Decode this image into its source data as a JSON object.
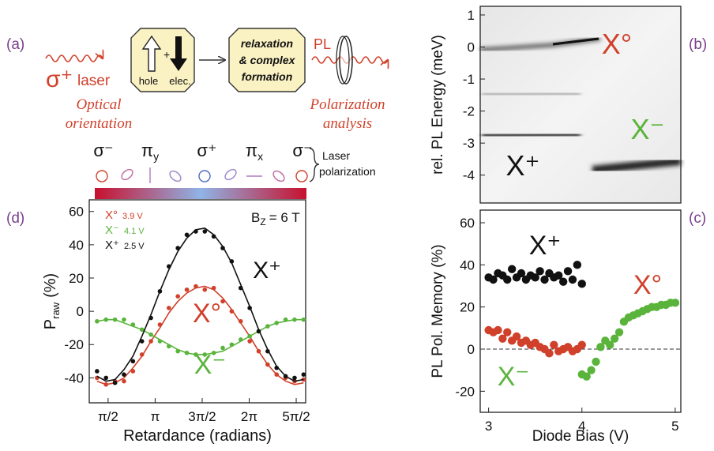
{
  "panel_labels": [
    "(a)",
    "(b)",
    "(c)",
    "(d)"
  ],
  "diagram": {
    "laser": {
      "symbol": "σ⁺",
      "text": "laser"
    },
    "optical": [
      "Optical",
      "orientation"
    ],
    "box1": {
      "plus": "+",
      "hole": "hole",
      "elec": "elec."
    },
    "box2": [
      "relaxation",
      "& complex",
      "formation"
    ],
    "pl": "PL",
    "polarization": [
      "Polarization",
      "analysis"
    ],
    "polarization_states": [
      {
        "symbol": "σ⁻"
      },
      {
        "symbol": "π",
        "sub": "y"
      },
      {
        "symbol": "σ⁺"
      },
      {
        "symbol": "π",
        "sub": "x"
      },
      {
        "symbol": "σ⁻"
      }
    ],
    "brace_label": [
      "Laser",
      "polarization"
    ]
  },
  "chart_data": [
    {
      "type": "line_scatter",
      "xlabel": "Retardance (radians)",
      "ylabel": {
        "main": "P",
        "sub": "raw",
        "unit": "(%)"
      },
      "annotation": {
        "main": "B",
        "sub": "Z",
        "rest": "= 6 T"
      },
      "xlim": [
        0.94,
        8.17
      ],
      "ylim": [
        -55,
        67
      ],
      "xticks": [
        {
          "value": 1.5708,
          "label": "π/2"
        },
        {
          "value": 3.1416,
          "label": "π"
        },
        {
          "value": 4.7124,
          "label": "3π/2"
        },
        {
          "value": 6.2832,
          "label": "2π"
        },
        {
          "value": 7.854,
          "label": "5π/2"
        }
      ],
      "yticks": [
        -40,
        -20,
        0,
        20,
        40,
        60
      ],
      "series": [
        {
          "name": "X°",
          "bias": "3.9 V",
          "color": "#d0402a",
          "x": [
            1.2,
            1.5,
            1.8,
            2.1,
            2.4,
            2.7,
            3.0,
            3.3,
            3.6,
            3.9,
            4.2,
            4.5,
            4.8,
            5.1,
            5.4,
            5.7,
            6.0,
            6.3,
            6.6,
            6.9,
            7.2,
            7.5,
            7.8,
            8.1
          ],
          "values": [
            -40,
            -44,
            -42,
            -42,
            -36,
            -26,
            -18,
            -8,
            2,
            9,
            13,
            15,
            13,
            14,
            6,
            0,
            -6,
            -18,
            -24,
            -32,
            -38,
            -40,
            -42,
            -41
          ],
          "fit": [
            -42,
            -44,
            -43,
            -40,
            -34,
            -27,
            -18,
            -10,
            -1,
            6,
            11,
            14,
            15,
            13,
            8,
            1,
            -7,
            -15,
            -24,
            -32,
            -38,
            -42,
            -44,
            -43
          ]
        },
        {
          "name": "X⁻",
          "bias": "4.1 V",
          "color": "#5ab43c",
          "x": [
            1.2,
            1.5,
            1.8,
            2.1,
            2.4,
            2.7,
            3.0,
            3.3,
            3.6,
            3.9,
            4.2,
            4.5,
            4.8,
            5.1,
            5.4,
            5.7,
            6.0,
            6.3,
            6.6,
            6.9,
            7.2,
            7.5,
            7.8,
            8.1
          ],
          "values": [
            -6,
            -5,
            -5,
            -5,
            -8,
            -11,
            -14,
            -18,
            -21,
            -24,
            -25,
            -26,
            -26,
            -25,
            -22,
            -20,
            -17,
            -15,
            -12,
            -9,
            -7,
            -5,
            -5,
            -5
          ],
          "fit": [
            -6,
            -5,
            -5,
            -7,
            -9,
            -11,
            -14,
            -17,
            -20,
            -23,
            -25,
            -26,
            -26,
            -25,
            -24,
            -21,
            -18,
            -15,
            -12,
            -9,
            -7,
            -6,
            -5,
            -5
          ]
        },
        {
          "name": "X⁺",
          "bias": "2.5 V",
          "color": "#111111",
          "x": [
            1.2,
            1.5,
            1.8,
            2.1,
            2.4,
            2.7,
            3.0,
            3.3,
            3.6,
            3.9,
            4.2,
            4.5,
            4.8,
            5.1,
            5.4,
            5.7,
            6.0,
            6.3,
            6.6,
            6.9,
            7.2,
            7.5,
            7.8,
            8.1
          ],
          "values": [
            -36,
            -40,
            -43,
            -38,
            -30,
            -18,
            -4,
            12,
            27,
            38,
            46,
            48,
            48,
            45,
            38,
            30,
            14,
            2,
            -12,
            -24,
            -34,
            -39,
            -40,
            -38
          ],
          "fit": [
            -39,
            -42,
            -41,
            -35,
            -27,
            -15,
            -2,
            12,
            25,
            36,
            44,
            49,
            50,
            46,
            39,
            29,
            16,
            3,
            -11,
            -23,
            -33,
            -39,
            -42,
            -41
          ]
        }
      ]
    },
    {
      "type": "image",
      "ylabel": "rel. PL Energy (meV)",
      "ylim": [
        -4.87,
        1.27
      ],
      "yticks": [
        1,
        0,
        -1,
        -2,
        -3,
        -4
      ],
      "annotations": [
        {
          "text": "X°",
          "color": "#d0402a"
        },
        {
          "text": "X⁻",
          "color": "#5ab43c"
        },
        {
          "text": "X⁺",
          "color": "#111111"
        }
      ]
    },
    {
      "type": "scatter",
      "xlabel": "Diode Bias (V)",
      "ylabel": "PL Pol. Memory (%)",
      "xlim": [
        2.91,
        5.06
      ],
      "ylim": [
        -30,
        66
      ],
      "xticks": [
        3,
        4,
        5
      ],
      "yticks": [
        -20,
        0,
        20,
        40,
        60
      ],
      "hline": 0,
      "series": [
        {
          "name": "X⁺",
          "color": "#111111",
          "x": [
            3.0,
            3.05,
            3.1,
            3.15,
            3.2,
            3.25,
            3.3,
            3.35,
            3.4,
            3.45,
            3.5,
            3.55,
            3.6,
            3.65,
            3.7,
            3.75,
            3.8,
            3.85,
            3.9,
            3.95,
            4.0
          ],
          "values": [
            34,
            33,
            36,
            35,
            33,
            38,
            34,
            36,
            33,
            35,
            34,
            37,
            33,
            36,
            34,
            35,
            32,
            37,
            33,
            40,
            31
          ]
        },
        {
          "name": "X°",
          "color": "#d0402a",
          "x": [
            3.0,
            3.05,
            3.1,
            3.15,
            3.2,
            3.25,
            3.3,
            3.35,
            3.4,
            3.45,
            3.5,
            3.55,
            3.6,
            3.65,
            3.7,
            3.75,
            3.8,
            3.85,
            3.9,
            3.95,
            4.0
          ],
          "values": [
            9,
            8,
            9,
            5,
            8,
            4,
            6,
            3,
            4,
            2,
            3,
            1,
            0,
            -2,
            2,
            -1,
            0,
            1,
            -1,
            0,
            2
          ]
        },
        {
          "name": "X⁻",
          "color": "#5ab43c",
          "x": [
            4.0,
            4.05,
            4.1,
            4.15,
            4.2,
            4.25,
            4.3,
            4.35,
            4.4,
            4.45,
            4.5,
            4.55,
            4.6,
            4.65,
            4.7,
            4.75,
            4.8,
            4.85,
            4.9,
            4.95,
            5.0
          ],
          "values": [
            -12,
            -13,
            -10,
            -6,
            1,
            4,
            2,
            5,
            8,
            13,
            15,
            16,
            17,
            18,
            19,
            20,
            20,
            21,
            21,
            22,
            22
          ]
        }
      ]
    }
  ]
}
